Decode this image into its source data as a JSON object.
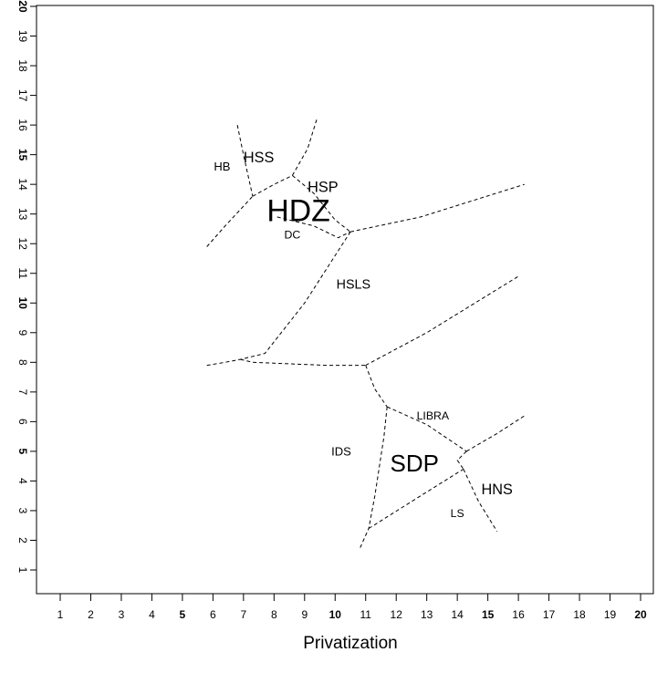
{
  "chart_data": {
    "type": "scatter",
    "title": "",
    "xlabel": "Privatization",
    "ylabel": "",
    "xlim": [
      1,
      20
    ],
    "ylim": [
      1,
      20
    ],
    "grid": false,
    "legend": "none",
    "x_ticks": [
      {
        "value": 1,
        "label": "1",
        "bold": false
      },
      {
        "value": 2,
        "label": "2",
        "bold": false
      },
      {
        "value": 3,
        "label": "3",
        "bold": false
      },
      {
        "value": 4,
        "label": "4",
        "bold": false
      },
      {
        "value": 5,
        "label": "5",
        "bold": true
      },
      {
        "value": 6,
        "label": "6",
        "bold": false
      },
      {
        "value": 7,
        "label": "7",
        "bold": false
      },
      {
        "value": 8,
        "label": "8",
        "bold": false
      },
      {
        "value": 9,
        "label": "9",
        "bold": false
      },
      {
        "value": 10,
        "label": "10",
        "bold": true
      },
      {
        "value": 11,
        "label": "11",
        "bold": false
      },
      {
        "value": 12,
        "label": "12",
        "bold": false
      },
      {
        "value": 13,
        "label": "13",
        "bold": false
      },
      {
        "value": 14,
        "label": "14",
        "bold": false
      },
      {
        "value": 15,
        "label": "15",
        "bold": true
      },
      {
        "value": 16,
        "label": "16",
        "bold": false
      },
      {
        "value": 17,
        "label": "17",
        "bold": false
      },
      {
        "value": 18,
        "label": "18",
        "bold": false
      },
      {
        "value": 19,
        "label": "19",
        "bold": false
      },
      {
        "value": 20,
        "label": "20",
        "bold": true
      }
    ],
    "y_ticks": [
      {
        "value": 1,
        "label": "1",
        "bold": false
      },
      {
        "value": 2,
        "label": "2",
        "bold": false
      },
      {
        "value": 3,
        "label": "3",
        "bold": false
      },
      {
        "value": 4,
        "label": "4",
        "bold": false
      },
      {
        "value": 5,
        "label": "5",
        "bold": true
      },
      {
        "value": 6,
        "label": "6",
        "bold": false
      },
      {
        "value": 7,
        "label": "7",
        "bold": false
      },
      {
        "value": 8,
        "label": "8",
        "bold": false
      },
      {
        "value": 9,
        "label": "9",
        "bold": false
      },
      {
        "value": 10,
        "label": "10",
        "bold": true
      },
      {
        "value": 11,
        "label": "11",
        "bold": false
      },
      {
        "value": 12,
        "label": "12",
        "bold": false
      },
      {
        "value": 13,
        "label": "13",
        "bold": false
      },
      {
        "value": 14,
        "label": "14",
        "bold": false
      },
      {
        "value": 15,
        "label": "15",
        "bold": true
      },
      {
        "value": 16,
        "label": "16",
        "bold": false
      },
      {
        "value": 17,
        "label": "17",
        "bold": false
      },
      {
        "value": 18,
        "label": "18",
        "bold": false
      },
      {
        "value": 19,
        "label": "19",
        "bold": false
      },
      {
        "value": 20,
        "label": "20",
        "bold": true
      }
    ],
    "points": [
      {
        "label": "HDZ",
        "x": 8.8,
        "y": 13.1,
        "size": 2.6
      },
      {
        "label": "HSS",
        "x": 7.5,
        "y": 14.9,
        "size": 1.25
      },
      {
        "label": "HB",
        "x": 6.3,
        "y": 14.6,
        "size": 1.0
      },
      {
        "label": "HSP",
        "x": 9.6,
        "y": 13.9,
        "size": 1.25
      },
      {
        "label": "DC",
        "x": 8.6,
        "y": 12.3,
        "size": 0.95
      },
      {
        "label": "HSLS",
        "x": 10.6,
        "y": 10.6,
        "size": 1.1
      },
      {
        "label": "LIBRA",
        "x": 13.2,
        "y": 6.2,
        "size": 0.95
      },
      {
        "label": "IDS",
        "x": 10.2,
        "y": 5.0,
        "size": 1.0
      },
      {
        "label": "SDP",
        "x": 12.6,
        "y": 4.6,
        "size": 2.0
      },
      {
        "label": "HNS",
        "x": 15.3,
        "y": 3.7,
        "size": 1.25
      },
      {
        "label": "LS",
        "x": 14.0,
        "y": 2.9,
        "size": 0.95
      }
    ],
    "boundaries": [
      [
        [
          6.8,
          16.0
        ],
        [
          7.0,
          15.0
        ],
        [
          7.3,
          13.6
        ]
      ],
      [
        [
          5.8,
          11.9
        ],
        [
          6.4,
          12.6
        ],
        [
          7.3,
          13.6
        ]
      ],
      [
        [
          7.3,
          13.6
        ],
        [
          8.0,
          14.0
        ],
        [
          8.6,
          14.3
        ]
      ],
      [
        [
          8.6,
          14.3
        ],
        [
          9.1,
          15.2
        ],
        [
          9.4,
          16.2
        ]
      ],
      [
        [
          8.6,
          14.3
        ],
        [
          9.3,
          13.7
        ],
        [
          10.0,
          12.8
        ],
        [
          10.5,
          12.4
        ]
      ],
      [
        [
          8.1,
          12.9
        ],
        [
          9.3,
          12.6
        ],
        [
          10.1,
          12.2
        ],
        [
          10.5,
          12.4
        ]
      ],
      [
        [
          10.5,
          12.4
        ],
        [
          12.8,
          12.9
        ],
        [
          16.2,
          14.0
        ]
      ],
      [
        [
          10.5,
          12.4
        ],
        [
          9.0,
          10.0
        ],
        [
          7.7,
          8.3
        ],
        [
          6.9,
          8.1
        ]
      ],
      [
        [
          5.8,
          7.9
        ],
        [
          6.4,
          8.0
        ],
        [
          6.9,
          8.1
        ]
      ],
      [
        [
          6.9,
          8.1
        ],
        [
          7.3,
          8.0
        ],
        [
          9.7,
          7.9
        ],
        [
          11.0,
          7.9
        ]
      ],
      [
        [
          11.0,
          7.9
        ],
        [
          13.0,
          9.0
        ],
        [
          16.0,
          10.9
        ]
      ],
      [
        [
          11.0,
          7.9
        ],
        [
          11.3,
          7.1
        ],
        [
          11.7,
          6.5
        ]
      ],
      [
        [
          11.7,
          6.5
        ],
        [
          13.0,
          5.9
        ],
        [
          14.3,
          5.0
        ]
      ],
      [
        [
          14.3,
          5.0
        ],
        [
          15.3,
          5.6
        ],
        [
          16.2,
          6.2
        ]
      ],
      [
        [
          11.7,
          6.5
        ],
        [
          11.6,
          5.5
        ],
        [
          11.3,
          3.5
        ],
        [
          11.1,
          2.4
        ],
        [
          10.8,
          1.7
        ]
      ],
      [
        [
          14.3,
          5.0
        ],
        [
          14.0,
          4.7
        ],
        [
          14.2,
          4.4
        ]
      ],
      [
        [
          11.1,
          2.4
        ],
        [
          12.8,
          3.5
        ],
        [
          14.2,
          4.4
        ]
      ],
      [
        [
          14.2,
          4.4
        ],
        [
          14.7,
          3.3
        ],
        [
          15.3,
          2.3
        ]
      ]
    ]
  }
}
